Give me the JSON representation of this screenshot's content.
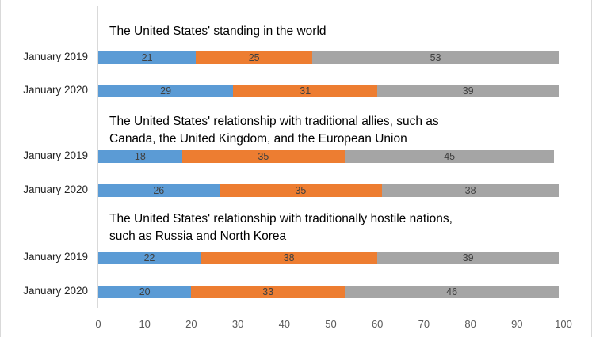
{
  "chart_data": {
    "type": "bar",
    "orientation": "horizontal-stacked",
    "xlim": [
      0,
      100
    ],
    "xticks": [
      "0",
      "10",
      "20",
      "30",
      "40",
      "50",
      "60",
      "70",
      "80",
      "90",
      "100"
    ],
    "colors": [
      "#5b9bd5",
      "#ed7d31",
      "#a5a5a5"
    ],
    "legend": "none",
    "grid": false,
    "groups": [
      {
        "title": "The United States' standing in the world",
        "rows": [
          {
            "label": "January 2019",
            "values": [
              21,
              25,
              53
            ]
          },
          {
            "label": "January 2020",
            "values": [
              29,
              31,
              39
            ]
          }
        ]
      },
      {
        "title": "The United States' relationship with traditional allies, such as\nCanada, the United Kingdom, and the European Union",
        "rows": [
          {
            "label": "January 2019",
            "values": [
              18,
              35,
              45
            ]
          },
          {
            "label": "January 2020",
            "values": [
              26,
              35,
              38
            ]
          }
        ]
      },
      {
        "title": "The United States' relationship with traditionally hostile nations,\nsuch as Russia and North Korea",
        "rows": [
          {
            "label": "January 2019",
            "values": [
              22,
              38,
              39
            ]
          },
          {
            "label": "January 2020",
            "values": [
              20,
              33,
              46
            ]
          }
        ]
      }
    ]
  }
}
